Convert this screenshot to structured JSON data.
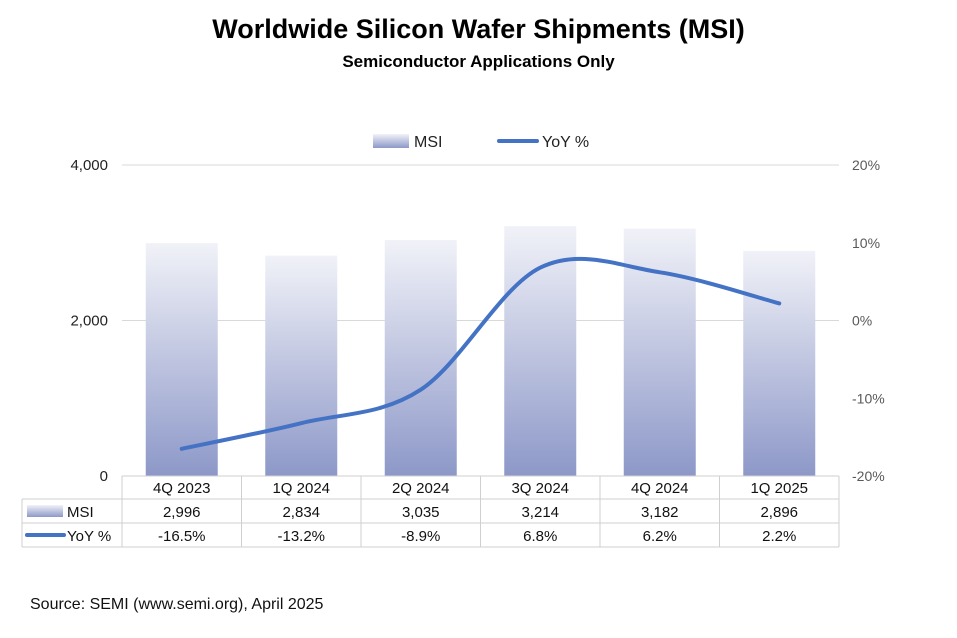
{
  "title": "Worldwide Silicon Wafer Shipments (MSI)",
  "subtitle": "Semiconductor Applications Only",
  "source": "Source: SEMI (www.semi.org), April 2025",
  "colors": {
    "bar_top": "#f1f2f8",
    "bar_bottom": "#8d98c8",
    "line": "#4472c4",
    "grid": "#d9d9d9",
    "axis_text": "#595959"
  },
  "chart_data": {
    "type": "bar",
    "categories": [
      "4Q 2023",
      "1Q 2024",
      "2Q 2024",
      "3Q 2024",
      "4Q 2024",
      "1Q 2025"
    ],
    "series": [
      {
        "name": "MSI",
        "type": "bar",
        "axis": "left",
        "values": [
          2996,
          2834,
          3035,
          3214,
          3182,
          2896
        ]
      },
      {
        "name": "YoY %",
        "type": "line",
        "axis": "right",
        "values": [
          -16.5,
          -13.2,
          -8.9,
          6.8,
          6.2,
          2.2
        ]
      }
    ],
    "y_left": {
      "min": 0,
      "max": 4000,
      "ticks": [
        0,
        2000,
        4000
      ],
      "tick_labels": [
        "0",
        "2,000",
        "4,000"
      ]
    },
    "y_right": {
      "min": -20,
      "max": 20,
      "ticks": [
        -20,
        -10,
        0,
        10,
        20
      ],
      "tick_labels": [
        "-20%",
        "-10%",
        "0%",
        "10%",
        "20%"
      ]
    },
    "legend": {
      "position": "top-center",
      "entries": [
        "MSI",
        "YoY %"
      ]
    },
    "data_table": {
      "rows": [
        {
          "label": "MSI",
          "values": [
            "2,996",
            "2,834",
            "3,035",
            "3,214",
            "3,182",
            "2,896"
          ]
        },
        {
          "label": "YoY %",
          "values": [
            "-16.5%",
            "-13.2%",
            "-8.9%",
            "6.8%",
            "6.2%",
            "2.2%"
          ]
        }
      ]
    },
    "grid": true
  }
}
